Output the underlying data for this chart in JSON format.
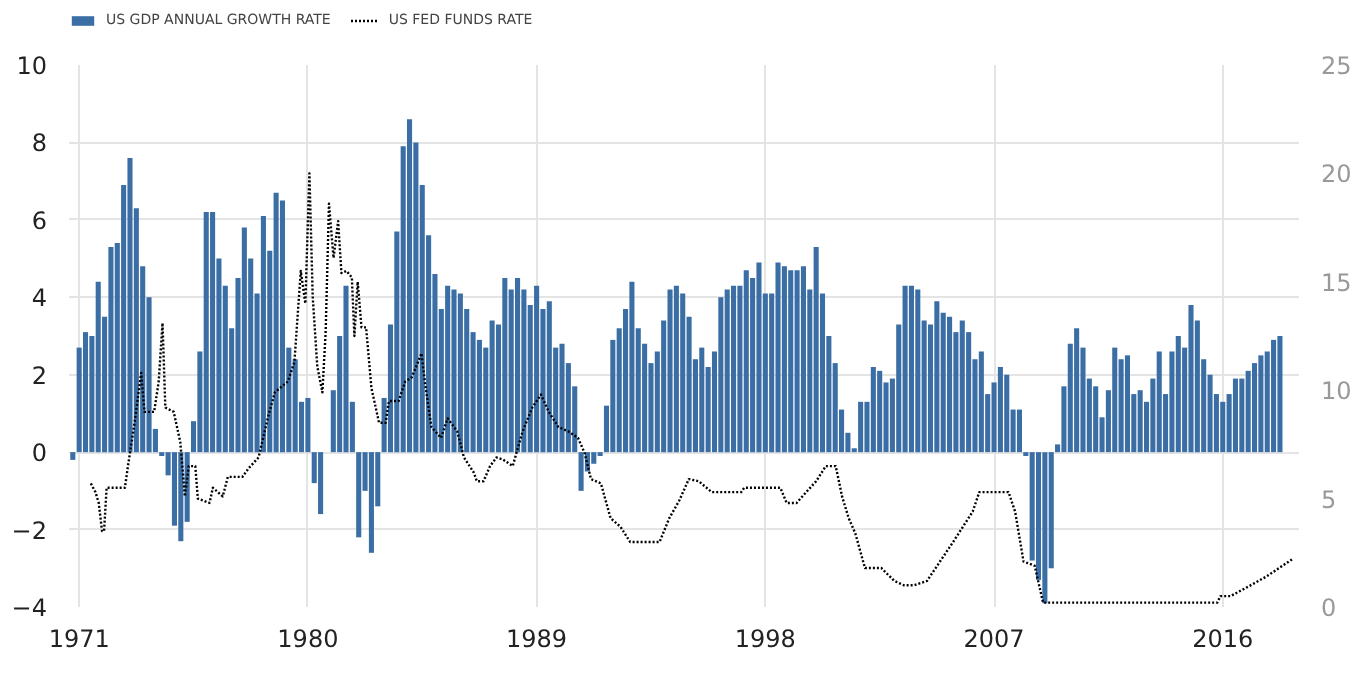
{
  "chart_data": {
    "type": "bar",
    "xlim": [
      1970.6,
      2019.0
    ],
    "xticks": [
      1971,
      1980,
      1989,
      1998,
      2007,
      2016
    ],
    "ylim": [
      -4,
      10
    ],
    "yticks": [
      -4,
      -2,
      0,
      2,
      4,
      6,
      8,
      10
    ],
    "y2lim": [
      0,
      25
    ],
    "y2ticks": [
      0,
      5,
      10,
      15,
      20,
      25
    ],
    "grid": true,
    "legend": "top left",
    "x": [
      1970.75,
      1971,
      1971.25,
      1971.5,
      1971.75,
      1972,
      1972.25,
      1972.5,
      1972.75,
      1973,
      1973.25,
      1973.5,
      1973.75,
      1974,
      1974.25,
      1974.5,
      1974.75,
      1975,
      1975.25,
      1975.5,
      1975.75,
      1976,
      1976.25,
      1976.5,
      1976.75,
      1977,
      1977.25,
      1977.5,
      1977.75,
      1978,
      1978.25,
      1978.5,
      1978.75,
      1979,
      1979.25,
      1979.5,
      1979.75,
      1980,
      1980.25,
      1980.5,
      1980.75,
      1981,
      1981.25,
      1981.5,
      1981.75,
      1982,
      1982.25,
      1982.5,
      1982.75,
      1983,
      1983.25,
      1983.5,
      1983.75,
      1984,
      1984.25,
      1984.5,
      1984.75,
      1985,
      1985.25,
      1985.5,
      1985.75,
      1986,
      1986.25,
      1986.5,
      1986.75,
      1987,
      1987.25,
      1987.5,
      1987.75,
      1988,
      1988.25,
      1988.5,
      1988.75,
      1989,
      1989.25,
      1989.5,
      1989.75,
      1990,
      1990.25,
      1990.5,
      1990.75,
      1991,
      1991.25,
      1991.5,
      1991.75,
      1992,
      1992.25,
      1992.5,
      1992.75,
      1993,
      1993.25,
      1993.5,
      1993.75,
      1994,
      1994.25,
      1994.5,
      1994.75,
      1995,
      1995.25,
      1995.5,
      1995.75,
      1996,
      1996.25,
      1996.5,
      1996.75,
      1997,
      1997.25,
      1997.5,
      1997.75,
      1998,
      1998.25,
      1998.5,
      1998.75,
      1999,
      1999.25,
      1999.5,
      1999.75,
      2000,
      2000.25,
      2000.5,
      2000.75,
      2001,
      2001.25,
      2001.5,
      2001.75,
      2002,
      2002.25,
      2002.5,
      2002.75,
      2003,
      2003.25,
      2003.5,
      2003.75,
      2004,
      2004.25,
      2004.5,
      2004.75,
      2005,
      2005.25,
      2005.5,
      2005.75,
      2006,
      2006.25,
      2006.5,
      2006.75,
      2007,
      2007.25,
      2007.5,
      2007.75,
      2008,
      2008.25,
      2008.5,
      2008.75,
      2009,
      2009.25,
      2009.5,
      2009.75,
      2010,
      2010.25,
      2010.5,
      2010.75,
      2011,
      2011.25,
      2011.5,
      2011.75,
      2012,
      2012.25,
      2012.5,
      2012.75,
      2013,
      2013.25,
      2013.5,
      2013.75,
      2014,
      2014.25,
      2014.5,
      2014.75,
      2015,
      2015.25,
      2015.5,
      2015.75,
      2016,
      2016.25,
      2016.5,
      2016.75,
      2017,
      2017.25,
      2017.5,
      2017.75,
      2018,
      2018.25
    ],
    "series": [
      {
        "name": "US GDP ANNUAL GROWTH RATE",
        "color": "#3a6ea5",
        "values": [
          -0.2,
          2.7,
          3.1,
          3.0,
          4.4,
          3.5,
          5.3,
          5.4,
          6.9,
          7.6,
          6.3,
          4.8,
          4.0,
          0.6,
          -0.1,
          -0.6,
          -1.9,
          -2.3,
          -1.8,
          0.8,
          2.6,
          6.2,
          6.2,
          5.0,
          4.3,
          3.2,
          4.5,
          5.8,
          5.0,
          4.1,
          6.1,
          5.2,
          6.7,
          6.5,
          2.7,
          2.4,
          1.3,
          1.4,
          -0.8,
          -1.6,
          0.0,
          1.6,
          3.0,
          4.3,
          1.3,
          -2.2,
          -1.0,
          -2.6,
          -1.4,
          1.4,
          3.3,
          5.7,
          7.9,
          8.6,
          8.0,
          6.9,
          5.6,
          4.6,
          3.7,
          4.3,
          4.2,
          4.1,
          3.7,
          3.1,
          2.9,
          2.7,
          3.4,
          3.3,
          4.5,
          4.2,
          4.5,
          4.2,
          3.8,
          4.3,
          3.7,
          3.9,
          2.7,
          2.8,
          2.3,
          1.7,
          -1.0,
          -0.5,
          -0.3,
          -0.1,
          1.2,
          2.9,
          3.2,
          3.7,
          4.4,
          3.2,
          2.8,
          2.3,
          2.6,
          3.4,
          4.2,
          4.3,
          4.1,
          3.5,
          2.4,
          2.7,
          2.2,
          2.6,
          4.0,
          4.2,
          4.3,
          4.3,
          4.7,
          4.5,
          4.9,
          4.1,
          4.1,
          4.9,
          4.8,
          4.7,
          4.7,
          4.8,
          4.2,
          5.3,
          4.1,
          3.0,
          2.3,
          1.1,
          0.5,
          0.1,
          1.3,
          1.3,
          2.2,
          2.1,
          1.8,
          1.9,
          3.3,
          4.3,
          4.3,
          4.2,
          3.4,
          3.3,
          3.9,
          3.6,
          3.5,
          3.1,
          3.4,
          3.1,
          2.4,
          2.6,
          1.5,
          1.8,
          2.2,
          2.0,
          1.1,
          1.1,
          -0.1,
          -2.8,
          -3.3,
          -3.9,
          -3.0,
          0.2,
          1.7,
          2.8,
          3.2,
          2.7,
          1.9,
          1.7,
          0.9,
          1.6,
          2.7,
          2.4,
          2.5,
          1.5,
          1.6,
          1.3,
          1.9,
          2.6,
          1.5,
          2.6,
          3.0,
          2.7,
          3.8,
          3.4,
          2.4,
          2.0,
          1.5,
          1.3,
          1.5,
          1.9,
          1.9,
          2.1,
          2.3,
          2.5,
          2.6,
          2.9,
          3.0
        ]
      },
      {
        "name": "US FED FUNDS RATE",
        "type": "line",
        "axis": "y2",
        "color": "#000000",
        "line_style": "dotted",
        "x": [
          1971.46,
          1971.64,
          1971.77,
          1971.9,
          1971.98,
          1972.08,
          1972.8,
          1972.92,
          1973.18,
          1973.44,
          1973.57,
          1973.95,
          1974.13,
          1974.28,
          1974.39,
          1974.72,
          1974.98,
          1975.16,
          1975.31,
          1975.57,
          1975.67,
          1976.13,
          1976.26,
          1976.65,
          1976.85,
          1977.42,
          1977.67,
          1978.06,
          1978.44,
          1978.7,
          1979.21,
          1979.47,
          1979.72,
          1979.9,
          1980.06,
          1980.19,
          1980.37,
          1980.57,
          1980.7,
          1980.83,
          1981.01,
          1981.19,
          1981.32,
          1981.52,
          1981.73,
          1981.83,
          1981.96,
          1982.11,
          1982.29,
          1982.5,
          1982.8,
          1983.06,
          1983.19,
          1983.57,
          1983.83,
          1984.09,
          1984.47,
          1984.6,
          1984.86,
          1985.24,
          1985.5,
          1985.88,
          1986.14,
          1986.53,
          1986.65,
          1986.91,
          1987.17,
          1987.42,
          1987.68,
          1988.06,
          1988.45,
          1988.83,
          1989.17,
          1989.48,
          1989.86,
          1990.25,
          1990.63,
          1990.89,
          1991.14,
          1991.53,
          1991.91,
          1992.3,
          1992.68,
          1993.84,
          1994.22,
          1994.61,
          1994.99,
          1995.38,
          1995.89,
          1997.05,
          1997.17,
          1998.59,
          1998.84,
          1999.23,
          1999.61,
          2000.0,
          2000.38,
          2000.77,
          2001.02,
          2001.28,
          2001.54,
          2001.92,
          2002.56,
          2003.08,
          2003.46,
          2003.85,
          2004.36,
          2005.39,
          2006.16,
          2006.42,
          2007.57,
          2007.83,
          2008.16,
          2008.6,
          2008.93,
          2015.78,
          2015.91,
          2016.3,
          2016.94,
          2017.71,
          2018.22,
          2018.73
        ],
        "values": [
          5.7,
          5.3,
          4.8,
          3.5,
          3.5,
          5.5,
          5.5,
          6.5,
          8.5,
          10.8,
          9.0,
          9.0,
          10.4,
          13.1,
          9.2,
          9.0,
          7.6,
          5.1,
          6.5,
          6.5,
          5.0,
          4.8,
          5.5,
          5.1,
          6.0,
          6.0,
          6.4,
          6.9,
          8.8,
          9.9,
          10.4,
          11.3,
          15.5,
          14.0,
          20.0,
          14.3,
          11.1,
          9.9,
          12.7,
          18.6,
          16.1,
          17.8,
          15.4,
          15.5,
          15.2,
          12.5,
          15.0,
          12.9,
          12.9,
          10.1,
          8.5,
          8.5,
          9.5,
          9.5,
          10.4,
          10.6,
          11.7,
          10.4,
          8.3,
          7.8,
          8.7,
          8.1,
          6.9,
          6.2,
          5.8,
          5.8,
          6.5,
          6.9,
          6.8,
          6.5,
          8.1,
          9.2,
          9.8,
          9.0,
          8.3,
          8.1,
          7.8,
          7.1,
          5.9,
          5.7,
          4.1,
          3.7,
          3.0,
          3.0,
          4.1,
          4.9,
          5.9,
          5.8,
          5.3,
          5.3,
          5.5,
          5.5,
          4.8,
          4.8,
          5.3,
          5.8,
          6.5,
          6.5,
          5.1,
          4.1,
          3.4,
          1.8,
          1.8,
          1.2,
          1.0,
          1.0,
          1.2,
          3.0,
          4.4,
          5.3,
          5.3,
          4.4,
          2.1,
          1.9,
          0.2,
          0.2,
          0.5,
          0.5,
          0.9,
          1.4,
          1.8,
          2.2
        ]
      }
    ]
  }
}
